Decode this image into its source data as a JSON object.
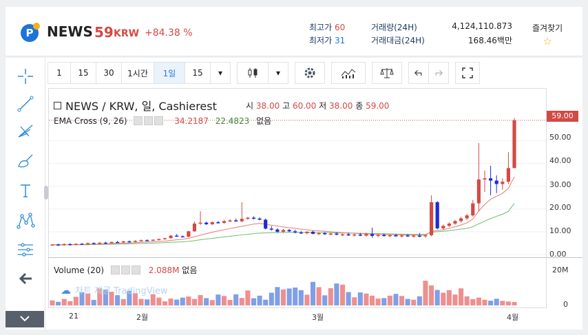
{
  "header": {
    "coin_name": "NEWS",
    "price": "59",
    "price_unit": "KRW",
    "change": "+84.38 %",
    "high_label": "최고가",
    "high_value": "60",
    "low_label": "최저가",
    "low_value": "31",
    "volume_label": "거래량(24H)",
    "volume_value": "4,124,110.873",
    "amount_label": "거래대금(24H)",
    "amount_value": "168.46백만",
    "favorite_label": "즐겨찾기"
  },
  "toolbar": {
    "intervals": [
      "1",
      "15",
      "30",
      "1시간",
      "1일",
      "15"
    ],
    "active_interval": "1일"
  },
  "chart": {
    "symbol_legend": "NEWS / KRW, 일, Cashierest",
    "ohlc": {
      "o_label": "시",
      "o": "38.00",
      "h_label": "고",
      "h": "60.00",
      "l_label": "저",
      "l": "38.00",
      "c_label": "종",
      "c": "59.00"
    },
    "ema_label": "EMA Cross (9, 26)",
    "ema_fast": "34.2187",
    "ema_slow": "22.4823",
    "ema_extra": "없음",
    "volume_label": "Volume (20)",
    "volume_value": "2.088M",
    "volume_extra": "없음",
    "watermark": "차트 제공 TradingView",
    "current_price_tag": "59.00",
    "price_axis_labels": [
      "50.00",
      "40.00",
      "30.00",
      "20.00",
      "10.00",
      "0.00"
    ],
    "volume_axis_labels": [
      "20M",
      "0"
    ],
    "time_axis_labels": [
      "21",
      "2월",
      "3월",
      "4월"
    ],
    "colors": {
      "up": "#d24a44",
      "down": "#1f2ad4",
      "ema_fast": "#e77a74",
      "ema_slow": "#6cbf6c",
      "vol_up": "#ee8f8f",
      "vol_down": "#7f9fe6"
    }
  },
  "chart_data": {
    "type": "candlestick",
    "title": "NEWS / KRW, 일, Cashierest",
    "ylim": [
      0,
      62
    ],
    "price_ticks": [
      0,
      10,
      20,
      30,
      40,
      50
    ],
    "candles": [
      {
        "o": 4.2,
        "h": 4.6,
        "l": 3.9,
        "c": 4.4
      },
      {
        "o": 4.4,
        "h": 4.8,
        "l": 3.8,
        "c": 4.1
      },
      {
        "o": 4.1,
        "h": 4.9,
        "l": 3.9,
        "c": 4.6
      },
      {
        "o": 4.6,
        "h": 5.0,
        "l": 3.9,
        "c": 4.2
      },
      {
        "o": 4.2,
        "h": 4.9,
        "l": 4.0,
        "c": 4.7
      },
      {
        "o": 4.7,
        "h": 5.1,
        "l": 4.2,
        "c": 4.4
      },
      {
        "o": 4.4,
        "h": 5.3,
        "l": 4.2,
        "c": 5.0
      },
      {
        "o": 5.0,
        "h": 5.4,
        "l": 4.6,
        "c": 4.8
      },
      {
        "o": 4.8,
        "h": 5.4,
        "l": 4.5,
        "c": 5.2
      },
      {
        "o": 5.2,
        "h": 5.6,
        "l": 4.8,
        "c": 5.0
      },
      {
        "o": 5.0,
        "h": 5.7,
        "l": 4.8,
        "c": 5.5
      },
      {
        "o": 5.5,
        "h": 6.0,
        "l": 5.1,
        "c": 5.3
      },
      {
        "o": 5.3,
        "h": 6.0,
        "l": 5.0,
        "c": 5.8
      },
      {
        "o": 5.8,
        "h": 6.2,
        "l": 5.3,
        "c": 5.6
      },
      {
        "o": 5.6,
        "h": 6.3,
        "l": 5.3,
        "c": 6.0
      },
      {
        "o": 6.0,
        "h": 6.6,
        "l": 5.7,
        "c": 6.3
      },
      {
        "o": 6.3,
        "h": 6.7,
        "l": 5.9,
        "c": 6.1
      },
      {
        "o": 6.1,
        "h": 6.7,
        "l": 5.9,
        "c": 6.5
      },
      {
        "o": 6.5,
        "h": 7.0,
        "l": 6.2,
        "c": 6.8
      },
      {
        "o": 6.8,
        "h": 7.4,
        "l": 6.5,
        "c": 7.2
      },
      {
        "o": 7.2,
        "h": 8.6,
        "l": 7.0,
        "c": 8.3
      },
      {
        "o": 8.3,
        "h": 9.0,
        "l": 7.8,
        "c": 8.0
      },
      {
        "o": 8.0,
        "h": 8.4,
        "l": 7.6,
        "c": 7.8
      },
      {
        "o": 7.8,
        "h": 10.5,
        "l": 7.6,
        "c": 10.2
      },
      {
        "o": 10.2,
        "h": 14.5,
        "l": 10.0,
        "c": 13.6
      },
      {
        "o": 13.6,
        "h": 19.0,
        "l": 13.0,
        "c": 14.0
      },
      {
        "o": 14.0,
        "h": 14.5,
        "l": 13.0,
        "c": 13.3
      },
      {
        "o": 13.3,
        "h": 14.6,
        "l": 12.9,
        "c": 14.2
      },
      {
        "o": 14.2,
        "h": 14.8,
        "l": 13.6,
        "c": 13.9
      },
      {
        "o": 13.9,
        "h": 15.2,
        "l": 13.5,
        "c": 14.7
      },
      {
        "o": 14.7,
        "h": 15.6,
        "l": 14.2,
        "c": 15.0
      },
      {
        "o": 15.0,
        "h": 15.8,
        "l": 14.4,
        "c": 14.6
      },
      {
        "o": 14.6,
        "h": 23.0,
        "l": 14.2,
        "c": 15.7
      },
      {
        "o": 15.7,
        "h": 16.5,
        "l": 15.2,
        "c": 16.2
      },
      {
        "o": 16.2,
        "h": 16.8,
        "l": 15.4,
        "c": 15.8
      },
      {
        "o": 15.8,
        "h": 16.4,
        "l": 15.1,
        "c": 15.3
      },
      {
        "o": 15.3,
        "h": 15.8,
        "l": 11.0,
        "c": 11.4
      },
      {
        "o": 11.4,
        "h": 12.5,
        "l": 10.5,
        "c": 11.0
      },
      {
        "o": 11.0,
        "h": 11.6,
        "l": 9.6,
        "c": 10.0
      },
      {
        "o": 10.0,
        "h": 11.2,
        "l": 9.5,
        "c": 10.8
      },
      {
        "o": 10.8,
        "h": 11.2,
        "l": 9.9,
        "c": 10.2
      },
      {
        "o": 10.2,
        "h": 10.9,
        "l": 9.3,
        "c": 9.7
      },
      {
        "o": 9.7,
        "h": 10.4,
        "l": 9.1,
        "c": 9.4
      },
      {
        "o": 9.4,
        "h": 10.3,
        "l": 8.8,
        "c": 10.0
      },
      {
        "o": 10.0,
        "h": 10.5,
        "l": 8.9,
        "c": 9.1
      },
      {
        "o": 9.1,
        "h": 9.8,
        "l": 8.6,
        "c": 9.4
      },
      {
        "o": 9.4,
        "h": 9.9,
        "l": 8.7,
        "c": 8.9
      },
      {
        "o": 8.9,
        "h": 9.6,
        "l": 8.4,
        "c": 9.2
      },
      {
        "o": 9.2,
        "h": 9.8,
        "l": 8.5,
        "c": 8.7
      },
      {
        "o": 8.7,
        "h": 9.3,
        "l": 8.1,
        "c": 8.9
      },
      {
        "o": 8.9,
        "h": 9.6,
        "l": 8.2,
        "c": 8.4
      },
      {
        "o": 8.4,
        "h": 9.2,
        "l": 7.9,
        "c": 8.8
      },
      {
        "o": 8.8,
        "h": 9.5,
        "l": 8.1,
        "c": 8.3
      },
      {
        "o": 8.3,
        "h": 9.6,
        "l": 7.8,
        "c": 9.0
      },
      {
        "o": 9.0,
        "h": 11.8,
        "l": 7.4,
        "c": 8.2
      },
      {
        "o": 8.2,
        "h": 9.0,
        "l": 7.6,
        "c": 8.6
      },
      {
        "o": 8.6,
        "h": 9.2,
        "l": 7.9,
        "c": 8.1
      },
      {
        "o": 8.1,
        "h": 8.9,
        "l": 7.6,
        "c": 8.5
      },
      {
        "o": 8.5,
        "h": 9.1,
        "l": 7.8,
        "c": 8.0
      },
      {
        "o": 8.0,
        "h": 8.9,
        "l": 7.5,
        "c": 8.4
      },
      {
        "o": 8.4,
        "h": 9.0,
        "l": 7.7,
        "c": 8.0
      },
      {
        "o": 8.0,
        "h": 8.8,
        "l": 7.4,
        "c": 8.3
      },
      {
        "o": 8.3,
        "h": 9.5,
        "l": 7.6,
        "c": 8.0
      },
      {
        "o": 8.0,
        "h": 8.6,
        "l": 7.4,
        "c": 8.5
      },
      {
        "o": 8.5,
        "h": 26.0,
        "l": 8.0,
        "c": 23.0
      },
      {
        "o": 23.0,
        "h": 23.5,
        "l": 11.0,
        "c": 11.5
      },
      {
        "o": 11.5,
        "h": 13.2,
        "l": 10.8,
        "c": 12.6
      },
      {
        "o": 12.6,
        "h": 14.1,
        "l": 12.1,
        "c": 13.6
      },
      {
        "o": 13.6,
        "h": 15.2,
        "l": 13.0,
        "c": 14.7
      },
      {
        "o": 14.7,
        "h": 16.5,
        "l": 14.0,
        "c": 15.9
      },
      {
        "o": 15.9,
        "h": 17.9,
        "l": 15.1,
        "c": 17.2
      },
      {
        "o": 17.2,
        "h": 24.0,
        "l": 16.6,
        "c": 22.5
      },
      {
        "o": 22.5,
        "h": 49.0,
        "l": 19.0,
        "c": 33.0
      },
      {
        "o": 33.0,
        "h": 37.0,
        "l": 27.5,
        "c": 33.5
      },
      {
        "o": 33.5,
        "h": 39.0,
        "l": 26.0,
        "c": 32.5
      },
      {
        "o": 32.5,
        "h": 34.8,
        "l": 27.0,
        "c": 31.0
      },
      {
        "o": 31.0,
        "h": 33.5,
        "l": 28.5,
        "c": 32.0
      },
      {
        "o": 32.0,
        "h": 45.0,
        "l": 31.0,
        "c": 38.0
      },
      {
        "o": 38.0,
        "h": 60.0,
        "l": 38.0,
        "c": 59.0
      }
    ],
    "ema_fast_series": [
      4.3,
      4.3,
      4.3,
      4.3,
      4.4,
      4.4,
      4.5,
      4.5,
      4.6,
      4.7,
      4.8,
      4.9,
      5.0,
      5.1,
      5.2,
      5.4,
      5.5,
      5.6,
      5.8,
      5.9,
      6.2,
      6.5,
      6.7,
      7.1,
      7.8,
      8.5,
      9.2,
      9.8,
      10.4,
      10.9,
      11.4,
      11.9,
      12.4,
      12.9,
      13.4,
      13.7,
      13.3,
      12.9,
      12.5,
      12.1,
      11.8,
      11.5,
      11.1,
      10.9,
      10.6,
      10.4,
      10.2,
      10.0,
      9.8,
      9.6,
      9.5,
      9.3,
      9.2,
      9.1,
      9.0,
      8.9,
      8.8,
      8.7,
      8.7,
      8.6,
      8.6,
      8.5,
      8.5,
      8.5,
      10.2,
      10.5,
      10.9,
      11.5,
      12.2,
      13.0,
      13.9,
      15.6,
      19.1,
      22.0,
      24.3,
      25.6,
      26.9,
      29.1,
      34.2
    ],
    "ema_slow_series": [
      4.2,
      4.2,
      4.2,
      4.3,
      4.3,
      4.3,
      4.3,
      4.4,
      4.4,
      4.5,
      4.5,
      4.6,
      4.6,
      4.7,
      4.8,
      4.9,
      4.9,
      5.0,
      5.1,
      5.2,
      5.4,
      5.5,
      5.6,
      5.8,
      6.1,
      6.5,
      6.8,
      7.1,
      7.4,
      7.7,
      8.0,
      8.3,
      8.6,
      8.9,
      9.2,
      9.4,
      9.5,
      9.6,
      9.6,
      9.7,
      9.7,
      9.7,
      9.7,
      9.7,
      9.7,
      9.6,
      9.6,
      9.6,
      9.5,
      9.5,
      9.4,
      9.4,
      9.3,
      9.3,
      9.2,
      9.2,
      9.1,
      9.1,
      9.0,
      9.0,
      8.9,
      8.9,
      8.9,
      8.9,
      9.8,
      10.0,
      10.2,
      10.5,
      10.8,
      11.2,
      11.5,
      12.2,
      13.5,
      14.7,
      15.8,
      16.8,
      17.7,
      19.0,
      22.5
    ],
    "volume": [
      3.1,
      2.2,
      4.0,
      2.6,
      5.3,
      8.1,
      7.2,
      3.4,
      10.5,
      9.8,
      8.4,
      6.3,
      3.9,
      9.0,
      7.5,
      4.0,
      3.7,
      6.9,
      4.8,
      2.5,
      4.2,
      3.6,
      4.8,
      5.5,
      4.0,
      6.4,
      4.5,
      3.3,
      6.7,
      5.8,
      3.4,
      6.8,
      4.6,
      9.2,
      4.4,
      6.0,
      3.5,
      7.8,
      11.3,
      9.8,
      10.4,
      11.0,
      9.4,
      6.6,
      14.5,
      11.2,
      6.2,
      10.6,
      13.5,
      12.8,
      8.2,
      5.0,
      8.0,
      7.3,
      6.0,
      4.2,
      4.5,
      6.0,
      7.1,
      5.8,
      4.0,
      3.5,
      5.6,
      15.2,
      12.3,
      9.5,
      7.8,
      9.4,
      6.7,
      10.5,
      5.6,
      3.9,
      4.8,
      3.5,
      2.9,
      4.1,
      2.8,
      2.4,
      2.1
    ],
    "volume_up": [
      true,
      false,
      true,
      true,
      true,
      false,
      true,
      false,
      true,
      false,
      true,
      false,
      true,
      false,
      true,
      true,
      false,
      true,
      true,
      true,
      true,
      false,
      false,
      true,
      true,
      true,
      false,
      true,
      false,
      true,
      true,
      false,
      true,
      true,
      false,
      false,
      false,
      false,
      false,
      true,
      false,
      false,
      false,
      true,
      false,
      true,
      false,
      true,
      false,
      true,
      false,
      true,
      false,
      true,
      true,
      true,
      false,
      true,
      false,
      true,
      false,
      true,
      false,
      true,
      true,
      false,
      true,
      true,
      true,
      true,
      true,
      true,
      true,
      true,
      false,
      false,
      true,
      true,
      true
    ],
    "volume_axis_max": 22,
    "volume_ticks": [
      0,
      20
    ],
    "time_labels": [
      "21",
      "2월",
      "3월",
      "4월"
    ]
  }
}
